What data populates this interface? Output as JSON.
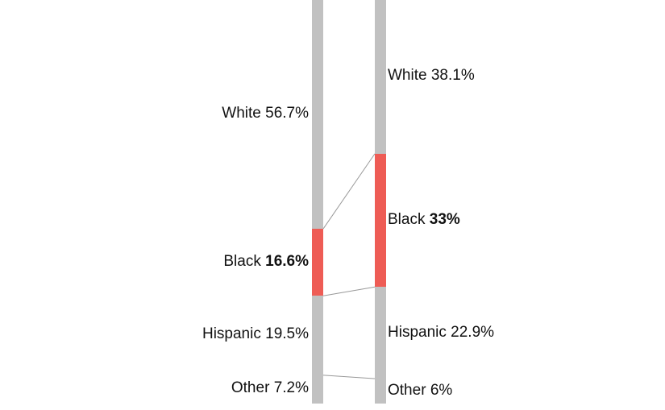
{
  "chart_data": {
    "type": "bar",
    "variant": "paired 100% stacked columns with connector lines (slope comparison)",
    "title": "",
    "categories": [
      "White",
      "Black",
      "Hispanic",
      "Other"
    ],
    "series": [
      {
        "name": "left_column",
        "values": [
          56.7,
          16.6,
          19.5,
          7.2
        ]
      },
      {
        "name": "right_column",
        "values": [
          38.1,
          33.0,
          22.9,
          6.0
        ]
      }
    ],
    "highlighted_category": "Black",
    "value_labels_left": [
      "White 56.7%",
      "Black 16.6%",
      "Hispanic 19.5%",
      "Other 7.2%"
    ],
    "value_labels_right": [
      "White 38.1%",
      "Black 33%",
      "Hispanic 22.9%",
      "Other 6%"
    ],
    "axes": "none",
    "legend_position": "none",
    "colors": {
      "bar_default": "#c1c1c1",
      "bar_highlight": "#ee5c55",
      "connector_line": "#999999",
      "text": "#111111",
      "background": "#ffffff"
    }
  },
  "labels": {
    "left": [
      {
        "category": "White",
        "value": "56.7%",
        "bold_value": false
      },
      {
        "category": "Black",
        "value": "16.6%",
        "bold_value": true
      },
      {
        "category": "Hispanic",
        "value": "19.5%",
        "bold_value": false
      },
      {
        "category": "Other",
        "value": "7.2%",
        "bold_value": false
      }
    ],
    "right": [
      {
        "category": "White",
        "value": "38.1%",
        "bold_value": false
      },
      {
        "category": "Black",
        "value": "33%",
        "bold_value": true
      },
      {
        "category": "Hispanic",
        "value": "22.9%",
        "bold_value": false
      },
      {
        "category": "Other",
        "value": "6%",
        "bold_value": false
      }
    ]
  }
}
